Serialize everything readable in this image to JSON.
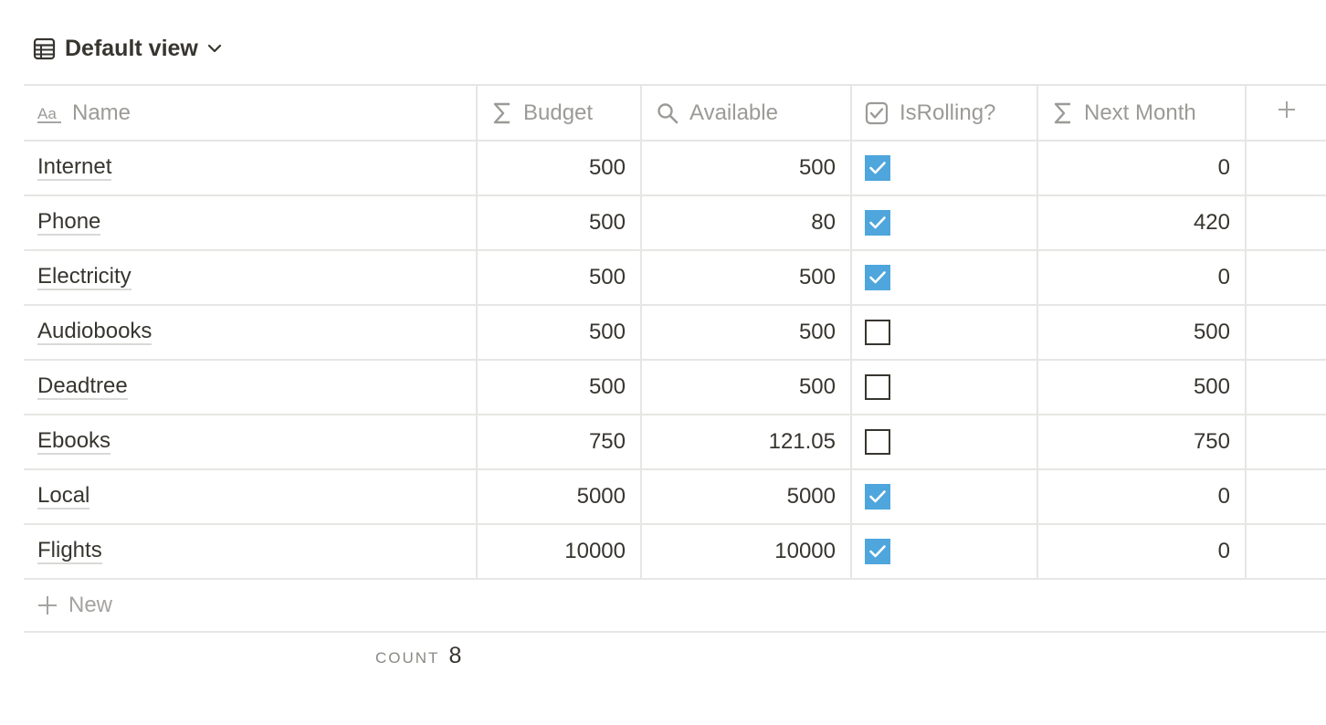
{
  "view": {
    "title": "Default view",
    "icon": "table-icon"
  },
  "columns": [
    {
      "label": "Name",
      "icon": "text-aa-icon"
    },
    {
      "label": "Budget",
      "icon": "sigma-icon"
    },
    {
      "label": "Available",
      "icon": "search-icon"
    },
    {
      "label": "IsRolling?",
      "icon": "checkbox-icon"
    },
    {
      "label": "Next Month",
      "icon": "sigma-icon"
    }
  ],
  "add_column_icon": "plus-icon",
  "rows": [
    {
      "name": "Internet",
      "budget": "500",
      "available": "500",
      "rolling": true,
      "next_month": "0"
    },
    {
      "name": "Phone",
      "budget": "500",
      "available": "80",
      "rolling": true,
      "next_month": "420"
    },
    {
      "name": "Electricity",
      "budget": "500",
      "available": "500",
      "rolling": true,
      "next_month": "0"
    },
    {
      "name": "Audiobooks",
      "budget": "500",
      "available": "500",
      "rolling": false,
      "next_month": "500"
    },
    {
      "name": "Deadtree",
      "budget": "500",
      "available": "500",
      "rolling": false,
      "next_month": "500"
    },
    {
      "name": "Ebooks",
      "budget": "750",
      "available": "121.05",
      "rolling": false,
      "next_month": "750"
    },
    {
      "name": "Local",
      "budget": "5000",
      "available": "5000",
      "rolling": true,
      "next_month": "0"
    },
    {
      "name": "Flights",
      "budget": "10000",
      "available": "10000",
      "rolling": true,
      "next_month": "0"
    }
  ],
  "new_row": {
    "label": "New"
  },
  "footer": {
    "count_label": "COUNT",
    "count_value": "8"
  },
  "colors": {
    "checked": "#4ea6dc",
    "text": "#37352f",
    "muted": "#9b9a97",
    "border": "#e6e6e4"
  }
}
